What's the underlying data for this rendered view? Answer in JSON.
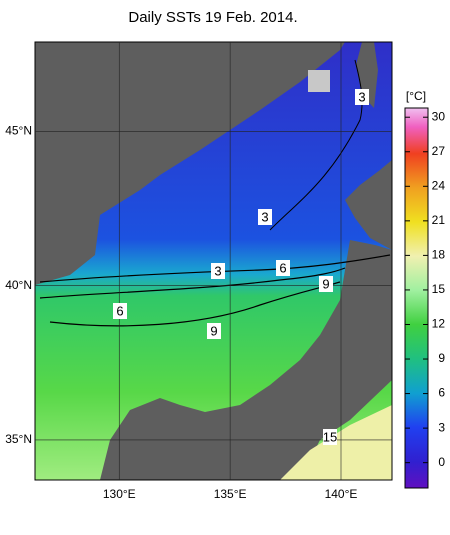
{
  "title": "Daily SSTs 19 Feb. 2014.",
  "map": {
    "xlim": [
      126.2,
      142.3
    ],
    "ylim": [
      33.7,
      47.9
    ],
    "xticks": [
      {
        "value": 130,
        "label": "130°E"
      },
      {
        "value": 135,
        "label": "135°E"
      },
      {
        "value": 140,
        "label": "140°E"
      }
    ],
    "yticks": [
      {
        "value": 45,
        "label": "45°N"
      },
      {
        "value": 40,
        "label": "40°N"
      },
      {
        "value": 35,
        "label": "35°N"
      }
    ],
    "contour_labels": [
      3,
      3,
      3,
      6,
      9,
      6,
      9,
      15
    ]
  },
  "colorbar": {
    "unit": "[°C]",
    "lim": [
      -2.2,
      30.8
    ],
    "ticks": [
      30,
      27,
      24,
      21,
      18,
      15,
      12,
      9,
      6,
      3,
      0
    ]
  }
}
